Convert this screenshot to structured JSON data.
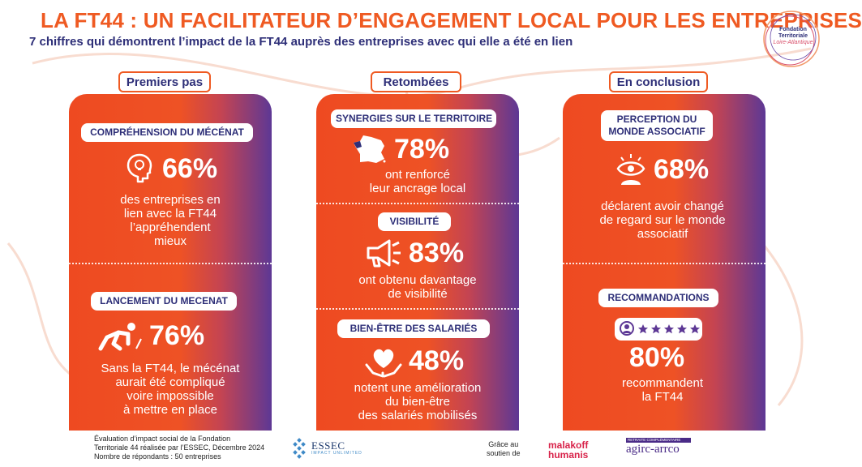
{
  "header": {
    "title": "LA FT44 : UN FACILITATEUR D’ENGAGEMENT LOCAL POUR LES ENTREPRISES",
    "subtitle": "7 chiffres qui démontrent l’impact de la FT44 auprès des entreprises avec qui elle a été en lien"
  },
  "logo": {
    "line1": "Fondation",
    "line2": "Territoriale",
    "line3": "Loire-Atlantique"
  },
  "colors": {
    "orange": "#ee4a21",
    "violet": "#5d3895",
    "navy": "#2e2f78"
  },
  "columns": [
    {
      "header": "Premiers pas",
      "sections": [
        {
          "label": "COMPRÉHENSION DU MÉCÉNAT",
          "value": "66%",
          "icon": "lightbulb-head-icon",
          "desc": [
            "des entreprises en",
            "lien avec la FT44",
            "l’appréhendent",
            "mieux"
          ]
        },
        {
          "label": "LANCEMENT DU MECENAT",
          "value": "76%",
          "icon": "runner-start-icon",
          "desc": [
            "Sans la FT44, le mécénat",
            "aurait été compliqué",
            "voire impossible",
            "à mettre en place"
          ]
        }
      ]
    },
    {
      "header": "Retombées",
      "sections": [
        {
          "label": "SYNERGIES SUR LE TERRITOIRE",
          "value": "78%",
          "icon": "france-map-icon",
          "desc": [
            "ont renforcé",
            "leur ancrage local"
          ]
        },
        {
          "label": "VISIBILITÉ",
          "value": "83%",
          "icon": "megaphone-icon",
          "desc": [
            "ont obtenu davantage",
            "de visibilité"
          ]
        },
        {
          "label": "BIEN-ÊTRE DES SALARIÉS",
          "value": "48%",
          "icon": "heart-hands-icon",
          "desc": [
            "notent une amélioration",
            "du bien-être",
            "des salariés mobilisés"
          ]
        }
      ]
    },
    {
      "header": "En conclusion",
      "sections": [
        {
          "label": [
            "PERCEPTION DU",
            "MONDE ASSOCIATIF"
          ],
          "value": "68%",
          "icon": "eye-person-icon",
          "desc": [
            "déclarent avoir changé",
            "de regard sur le monde",
            "associatif"
          ]
        },
        {
          "label": "RECOMMANDATIONS",
          "value": "80%",
          "icon": "rating-stars-icon",
          "desc": [
            "recommandent",
            "la FT44"
          ]
        }
      ]
    }
  ],
  "footer": {
    "note": [
      "Évaluation d’impact social  de la  Fondation",
      "Territoriale 44 réalisée par l’ESSEC, Décembre 2024",
      "Nombre de répondants : 50 entreprises"
    ],
    "essec": "ESSEC",
    "essec_sub": "IMPACT UNLIMITED",
    "grace": [
      "Grâce au",
      "soutien de"
    ],
    "malakoff": [
      "malakoff",
      "humanis"
    ],
    "agirc_top": "RETRAITE COMPLÉMENTAIRE",
    "agirc": "agirc-arrco"
  }
}
